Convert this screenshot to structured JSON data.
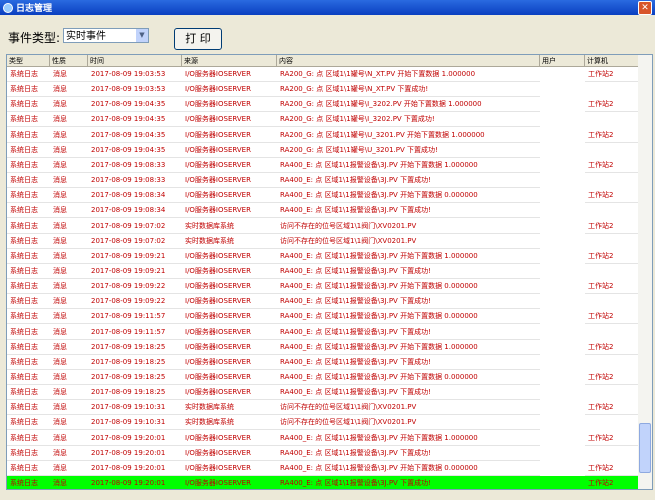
{
  "window": {
    "title": "日志管理"
  },
  "toolbar": {
    "label": "事件类型:",
    "selected": "实时事件",
    "print_button": "打 印"
  },
  "table": {
    "columns": [
      "类型",
      "性质",
      "时间",
      "来源",
      "内容",
      "用户",
      "计算机"
    ],
    "rows": [
      {
        "type": "系统日志",
        "nature": "消息",
        "time": "2017-08-09 19:03:53",
        "source": "I/O服务器IOSERVER",
        "content": "RA200_G: 点 区域1\\1罐号\\N_XT.PV 开始下置数据 1.000000",
        "computer": "工作站2"
      },
      {
        "type": "系统日志",
        "nature": "消息",
        "time": "2017-08-09 19:03:53",
        "source": "I/O服务器IOSERVER",
        "content": "RA200_G: 点 区域1\\1罐号\\N_XT.PV 下置成功!"
      },
      {
        "type": "系统日志",
        "nature": "消息",
        "time": "2017-08-09 19:04:35",
        "source": "I/O服务器IOSERVER",
        "content": "RA200_G: 点 区域1\\1罐号\\I_3202.PV 开始下置数据 1.000000",
        "computer": "工作站2"
      },
      {
        "type": "系统日志",
        "nature": "消息",
        "time": "2017-08-09 19:04:35",
        "source": "I/O服务器IOSERVER",
        "content": "RA200_G: 点 区域1\\1罐号\\I_3202.PV 下置成功!"
      },
      {
        "type": "系统日志",
        "nature": "消息",
        "time": "2017-08-09 19:04:35",
        "source": "I/O服务器IOSERVER",
        "content": "RA200_G: 点 区域1\\1罐号\\U_3201.PV 开始下置数据 1.000000",
        "computer": "工作站2"
      },
      {
        "type": "系统日志",
        "nature": "消息",
        "time": "2017-08-09 19:04:35",
        "source": "I/O服务器IOSERVER",
        "content": "RA200_G: 点 区域1\\1罐号\\U_3201.PV 下置成功!"
      },
      {
        "type": "系统日志",
        "nature": "消息",
        "time": "2017-08-09 19:08:33",
        "source": "I/O服务器IOSERVER",
        "content": "RA400_E: 点 区域1\\1报警设备\\3J.PV 开始下置数据 1.000000",
        "computer": "工作站2"
      },
      {
        "type": "系统日志",
        "nature": "消息",
        "time": "2017-08-09 19:08:33",
        "source": "I/O服务器IOSERVER",
        "content": "RA400_E: 点 区域1\\1报警设备\\3J.PV 下置成功!"
      },
      {
        "type": "系统日志",
        "nature": "消息",
        "time": "2017-08-09 19:08:34",
        "source": "I/O服务器IOSERVER",
        "content": "RA400_E: 点 区域1\\1报警设备\\3J.PV 开始下置数据 0.000000",
        "computer": "工作站2"
      },
      {
        "type": "系统日志",
        "nature": "消息",
        "time": "2017-08-09 19:08:34",
        "source": "I/O服务器IOSERVER",
        "content": "RA400_E: 点 区域1\\1报警设备\\3J.PV 下置成功!"
      },
      {
        "type": "系统日志",
        "nature": "消息",
        "time": "2017-08-09 19:07:02",
        "source": "实时数据库系统",
        "content": "访问不存在的位号区域1\\1阀门\\XV0201.PV",
        "computer": "工作站2"
      },
      {
        "type": "系统日志",
        "nature": "消息",
        "time": "2017-08-09 19:07:02",
        "source": "实时数据库系统",
        "content": "访问不存在的位号区域1\\1阀门\\XV0201.PV"
      },
      {
        "type": "系统日志",
        "nature": "消息",
        "time": "2017-08-09 19:09:21",
        "source": "I/O服务器IOSERVER",
        "content": "RA400_E: 点 区域1\\1报警设备\\3J.PV 开始下置数据 1.000000",
        "computer": "工作站2"
      },
      {
        "type": "系统日志",
        "nature": "消息",
        "time": "2017-08-09 19:09:21",
        "source": "I/O服务器IOSERVER",
        "content": "RA400_E: 点 区域1\\1报警设备\\3J.PV 下置成功!"
      },
      {
        "type": "系统日志",
        "nature": "消息",
        "time": "2017-08-09 19:09:22",
        "source": "I/O服务器IOSERVER",
        "content": "RA400_E: 点 区域1\\1报警设备\\3J.PV 开始下置数据 0.000000",
        "computer": "工作站2"
      },
      {
        "type": "系统日志",
        "nature": "消息",
        "time": "2017-08-09 19:09:22",
        "source": "I/O服务器IOSERVER",
        "content": "RA400_E: 点 区域1\\1报警设备\\3J.PV 下置成功!"
      },
      {
        "type": "系统日志",
        "nature": "消息",
        "time": "2017-08-09 19:11:57",
        "source": "I/O服务器IOSERVER",
        "content": "RA400_E: 点 区域1\\1报警设备\\3J.PV 开始下置数据 0.000000",
        "computer": "工作站2"
      },
      {
        "type": "系统日志",
        "nature": "消息",
        "time": "2017-08-09 19:11:57",
        "source": "I/O服务器IOSERVER",
        "content": "RA400_E: 点 区域1\\1报警设备\\3J.PV 下置成功!"
      },
      {
        "type": "系统日志",
        "nature": "消息",
        "time": "2017-08-09 19:18:25",
        "source": "I/O服务器IOSERVER",
        "content": "RA400_E: 点 区域1\\1报警设备\\3J.PV 开始下置数据 1.000000",
        "computer": "工作站2"
      },
      {
        "type": "系统日志",
        "nature": "消息",
        "time": "2017-08-09 19:18:25",
        "source": "I/O服务器IOSERVER",
        "content": "RA400_E: 点 区域1\\1报警设备\\3J.PV 下置成功!"
      },
      {
        "type": "系统日志",
        "nature": "消息",
        "time": "2017-08-09 19:18:25",
        "source": "I/O服务器IOSERVER",
        "content": "RA400_E: 点 区域1\\1报警设备\\3J.PV 开始下置数据 0.000000",
        "computer": "工作站2"
      },
      {
        "type": "系统日志",
        "nature": "消息",
        "time": "2017-08-09 19:18:25",
        "source": "I/O服务器IOSERVER",
        "content": "RA400_E: 点 区域1\\1报警设备\\3J.PV 下置成功!"
      },
      {
        "type": "系统日志",
        "nature": "消息",
        "time": "2017-08-09 19:10:31",
        "source": "实时数据库系统",
        "content": "访问不存在的位号区域1\\1阀门\\XV0201.PV",
        "computer": "工作站2"
      },
      {
        "type": "系统日志",
        "nature": "消息",
        "time": "2017-08-09 19:10:31",
        "source": "实时数据库系统",
        "content": "访问不存在的位号区域1\\1阀门\\XV0201.PV"
      },
      {
        "type": "系统日志",
        "nature": "消息",
        "time": "2017-08-09 19:20:01",
        "source": "I/O服务器IOSERVER",
        "content": "RA400_E: 点 区域1\\1报警设备\\3J.PV 开始下置数据 1.000000",
        "computer": "工作站2"
      },
      {
        "type": "系统日志",
        "nature": "消息",
        "time": "2017-08-09 19:20:01",
        "source": "I/O服务器IOSERVER",
        "content": "RA400_E: 点 区域1\\1报警设备\\3J.PV 下置成功!"
      },
      {
        "type": "系统日志",
        "nature": "消息",
        "time": "2017-08-09 19:20:01",
        "source": "I/O服务器IOSERVER",
        "content": "RA400_E: 点 区域1\\1报警设备\\3J.PV 开始下置数据 0.000000",
        "computer": "工作站2"
      },
      {
        "type": "系统日志",
        "nature": "消息",
        "time": "2017-08-09 19:20:01",
        "source": "I/O服务器IOSERVER",
        "content": "RA400_E: 点 区域1\\1报警设备\\3J.PV 下置成功!",
        "computer": "工作站2"
      }
    ],
    "selected_row": 27
  }
}
